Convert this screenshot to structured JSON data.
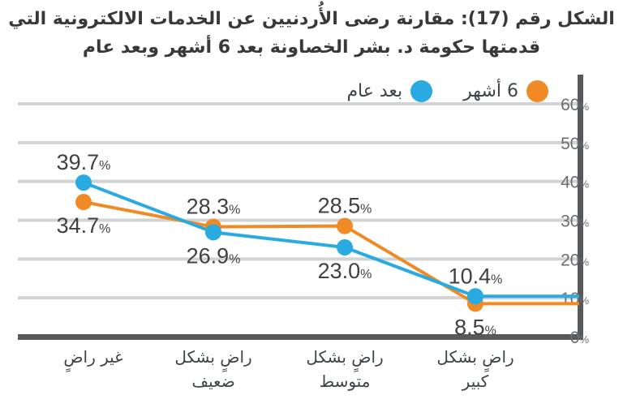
{
  "title": {
    "line1": "الشكل رقم (17): مقارنة رضى الأُردنيين عن الخدمات الالكترونية التي",
    "line2": "قدمتها حكومة د. بشر الخصاونة بعد 6 أشهر وبعد عام"
  },
  "chart_data": {
    "type": "line",
    "categories": [
      "غير راضٍ",
      "راضٍ بشكل ضعيف",
      "راضٍ بشكل متوسط",
      "راضٍ بشكل كبير"
    ],
    "category_lines": [
      [
        "غير راضٍ"
      ],
      [
        "راضٍ بشكل",
        "ضعيف"
      ],
      [
        "راضٍ بشكل",
        "متوسط"
      ],
      [
        "راضٍ بشكل",
        "كبير"
      ]
    ],
    "series": [
      {
        "name": "6 أشهر",
        "color": "#F08A24",
        "values": [
          34.7,
          28.3,
          28.5,
          8.5
        ]
      },
      {
        "name": "بعد عام",
        "color": "#29ABE2",
        "values": [
          39.7,
          26.9,
          23.0,
          10.4
        ]
      }
    ],
    "y_ticks": [
      0,
      10,
      20,
      30,
      40,
      50,
      60
    ],
    "y_tick_suffix": "%",
    "ylim": [
      0,
      60
    ],
    "y_axis_side": "right",
    "grid": true,
    "legend_position": "top-left-of-axis",
    "data_label_suffix": "%"
  },
  "colors": {
    "series_6_months": "#F08A24",
    "series_after_year": "#29ABE2",
    "axis": "#58595B",
    "gridline": "#D1D3D4",
    "data_label": "#414042",
    "tick_label": "#6B6D70",
    "category_label": "#3E4348",
    "title_text": "#39383A"
  }
}
